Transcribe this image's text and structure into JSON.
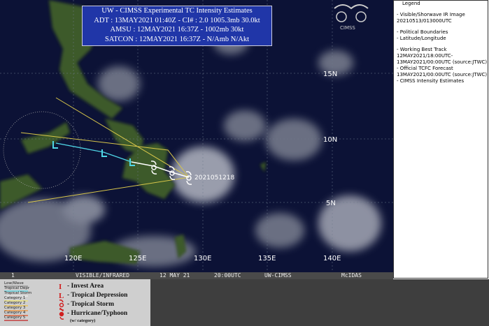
{
  "header": {
    "title": "UW - CIMSS Experimental TC Intensity Estimates",
    "lines": [
      "ADT : 13MAY2021 01:40Z  -  CI# : 2.0   1005.3mb   30.0kt",
      "AMSU : 12MAY2021 16:37Z  -  1002mb   30kt",
      "SATCON : 12MAY2021 16:37Z  -  N/Amb   N/Akt"
    ]
  },
  "logo": "CIMSS",
  "lat_labels": [
    "15N",
    "10N",
    "5N"
  ],
  "lon_labels": [
    "120E",
    "125E",
    "130E",
    "135E",
    "140E"
  ],
  "storm_label": "2021051218",
  "footer": [
    "1",
    "VISIBLE/INFRARED",
    "12 MAY 21",
    "20:00UTC",
    "UW-CIMSS",
    "McIDAS"
  ],
  "side_legend": {
    "title": "Legend",
    "items": [
      "-  Visible/Shorwave IR Image",
      "20210513/013000UTC",
      "-  Political Boundaries",
      "-  Latitude/Longitude",
      "-  Working Best Track",
      "12MAY2021/18:00UTC-",
      "13MAY2021/00:00UTC   (source:JTWC)",
      "-  Official TCFC Forecast",
      "13MAY2021/00:00UTC   (source:JTWC)",
      "-  CIMSS Intensity Estimates"
    ]
  },
  "track_legend": [
    "Low/Wave",
    "Tropical Depr",
    "Tropical Storm",
    "Category 1",
    "Category 2",
    "Category 3",
    "Category 4",
    "Category 5"
  ],
  "symbol_legend": [
    {
      "symbol": "I",
      "label": "- Invest Area"
    },
    {
      "symbol": "L",
      "label": "- Tropical Depression"
    },
    {
      "label": "- Tropical Storm"
    },
    {
      "label": "- Hurricane/Typhoon"
    }
  ],
  "symbol_note": "(w/ category)"
}
